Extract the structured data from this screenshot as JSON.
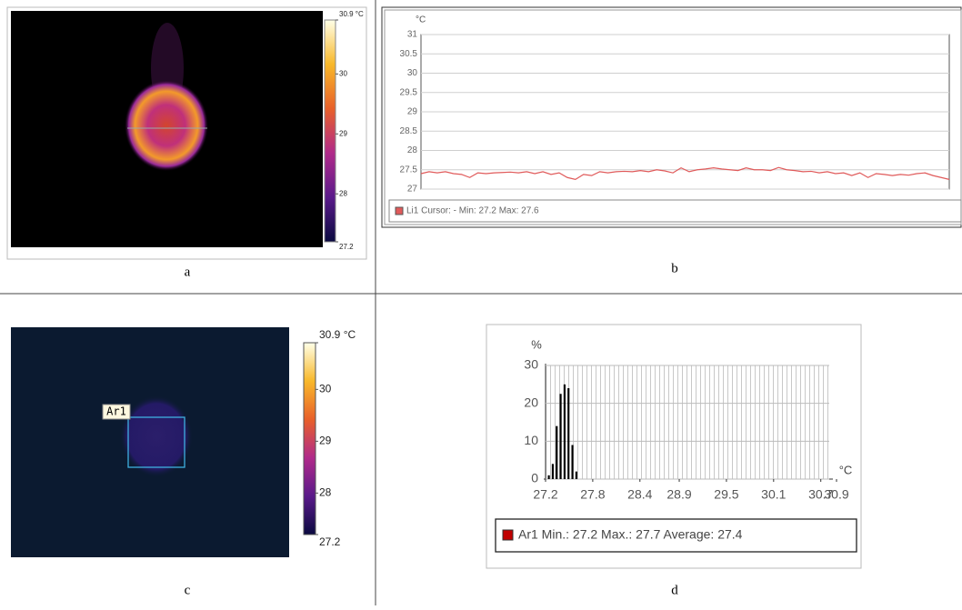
{
  "figure": {
    "panels": [
      {
        "label": "a",
        "colorbar": {
          "lim": [
            27.2,
            30.9
          ],
          "ticks": [
            27.2,
            28,
            29,
            30,
            {
              "value": 30.9,
              "label": "30.9 °C"
            }
          ]
        }
      },
      {
        "label": "b"
      },
      {
        "label": "c",
        "region_label": "Ar1",
        "colorbar": {
          "lim": [
            27.2,
            30.9
          ],
          "ticks": [
            27.2,
            28,
            29,
            30,
            {
              "value": 30.9,
              "label": "30.9 °C"
            }
          ]
        }
      },
      {
        "label": "d"
      }
    ]
  },
  "chart_data": [
    {
      "type": "line",
      "y_label": "°C",
      "ylim": [
        27,
        31
      ],
      "yticks": [
        27,
        27.5,
        28,
        28.5,
        29,
        29.5,
        30,
        30.5,
        31
      ],
      "grid": true,
      "series": [
        {
          "name": "Li1 Cursor: - Min: 27.2 Max: 27.6",
          "color": "#e05a5a",
          "values": [
            27.4,
            27.45,
            27.42,
            27.45,
            27.4,
            27.38,
            27.3,
            27.42,
            27.4,
            27.42,
            27.43,
            27.44,
            27.42,
            27.45,
            27.4,
            27.45,
            27.38,
            27.42,
            27.3,
            27.25,
            27.38,
            27.35,
            27.45,
            27.42,
            27.45,
            27.46,
            27.45,
            27.48,
            27.45,
            27.5,
            27.47,
            27.42,
            27.55,
            27.45,
            27.5,
            27.52,
            27.55,
            27.52,
            27.5,
            27.48,
            27.55,
            27.5,
            27.5,
            27.48,
            27.56,
            27.5,
            27.48,
            27.45,
            27.46,
            27.42,
            27.45,
            27.4,
            27.42,
            27.35,
            27.42,
            27.3,
            27.4,
            27.38,
            27.35,
            27.38,
            27.36,
            27.4,
            27.42,
            27.35,
            27.3,
            27.25
          ]
        }
      ]
    },
    {
      "type": "histogram",
      "y_label": "%",
      "x_label": "°C",
      "xlim": [
        27.2,
        30.9
      ],
      "ylim": [
        0,
        30
      ],
      "xticks": [
        27.2,
        27.8,
        28.4,
        28.9,
        29.5,
        30.1,
        30.7,
        30.9
      ],
      "yticks": [
        0,
        10,
        20,
        30
      ],
      "grid": true,
      "bins": [
        27.22,
        27.27,
        27.32,
        27.37,
        27.42,
        27.47,
        27.52,
        27.57,
        27.62
      ],
      "series": [
        {
          "name": "Ar1 Min.: 27.2 Max.: 27.7 Average: 27.4",
          "color": "#c00000",
          "values": [
            1,
            4,
            14,
            22.5,
            25,
            24,
            9,
            2
          ]
        }
      ]
    }
  ]
}
